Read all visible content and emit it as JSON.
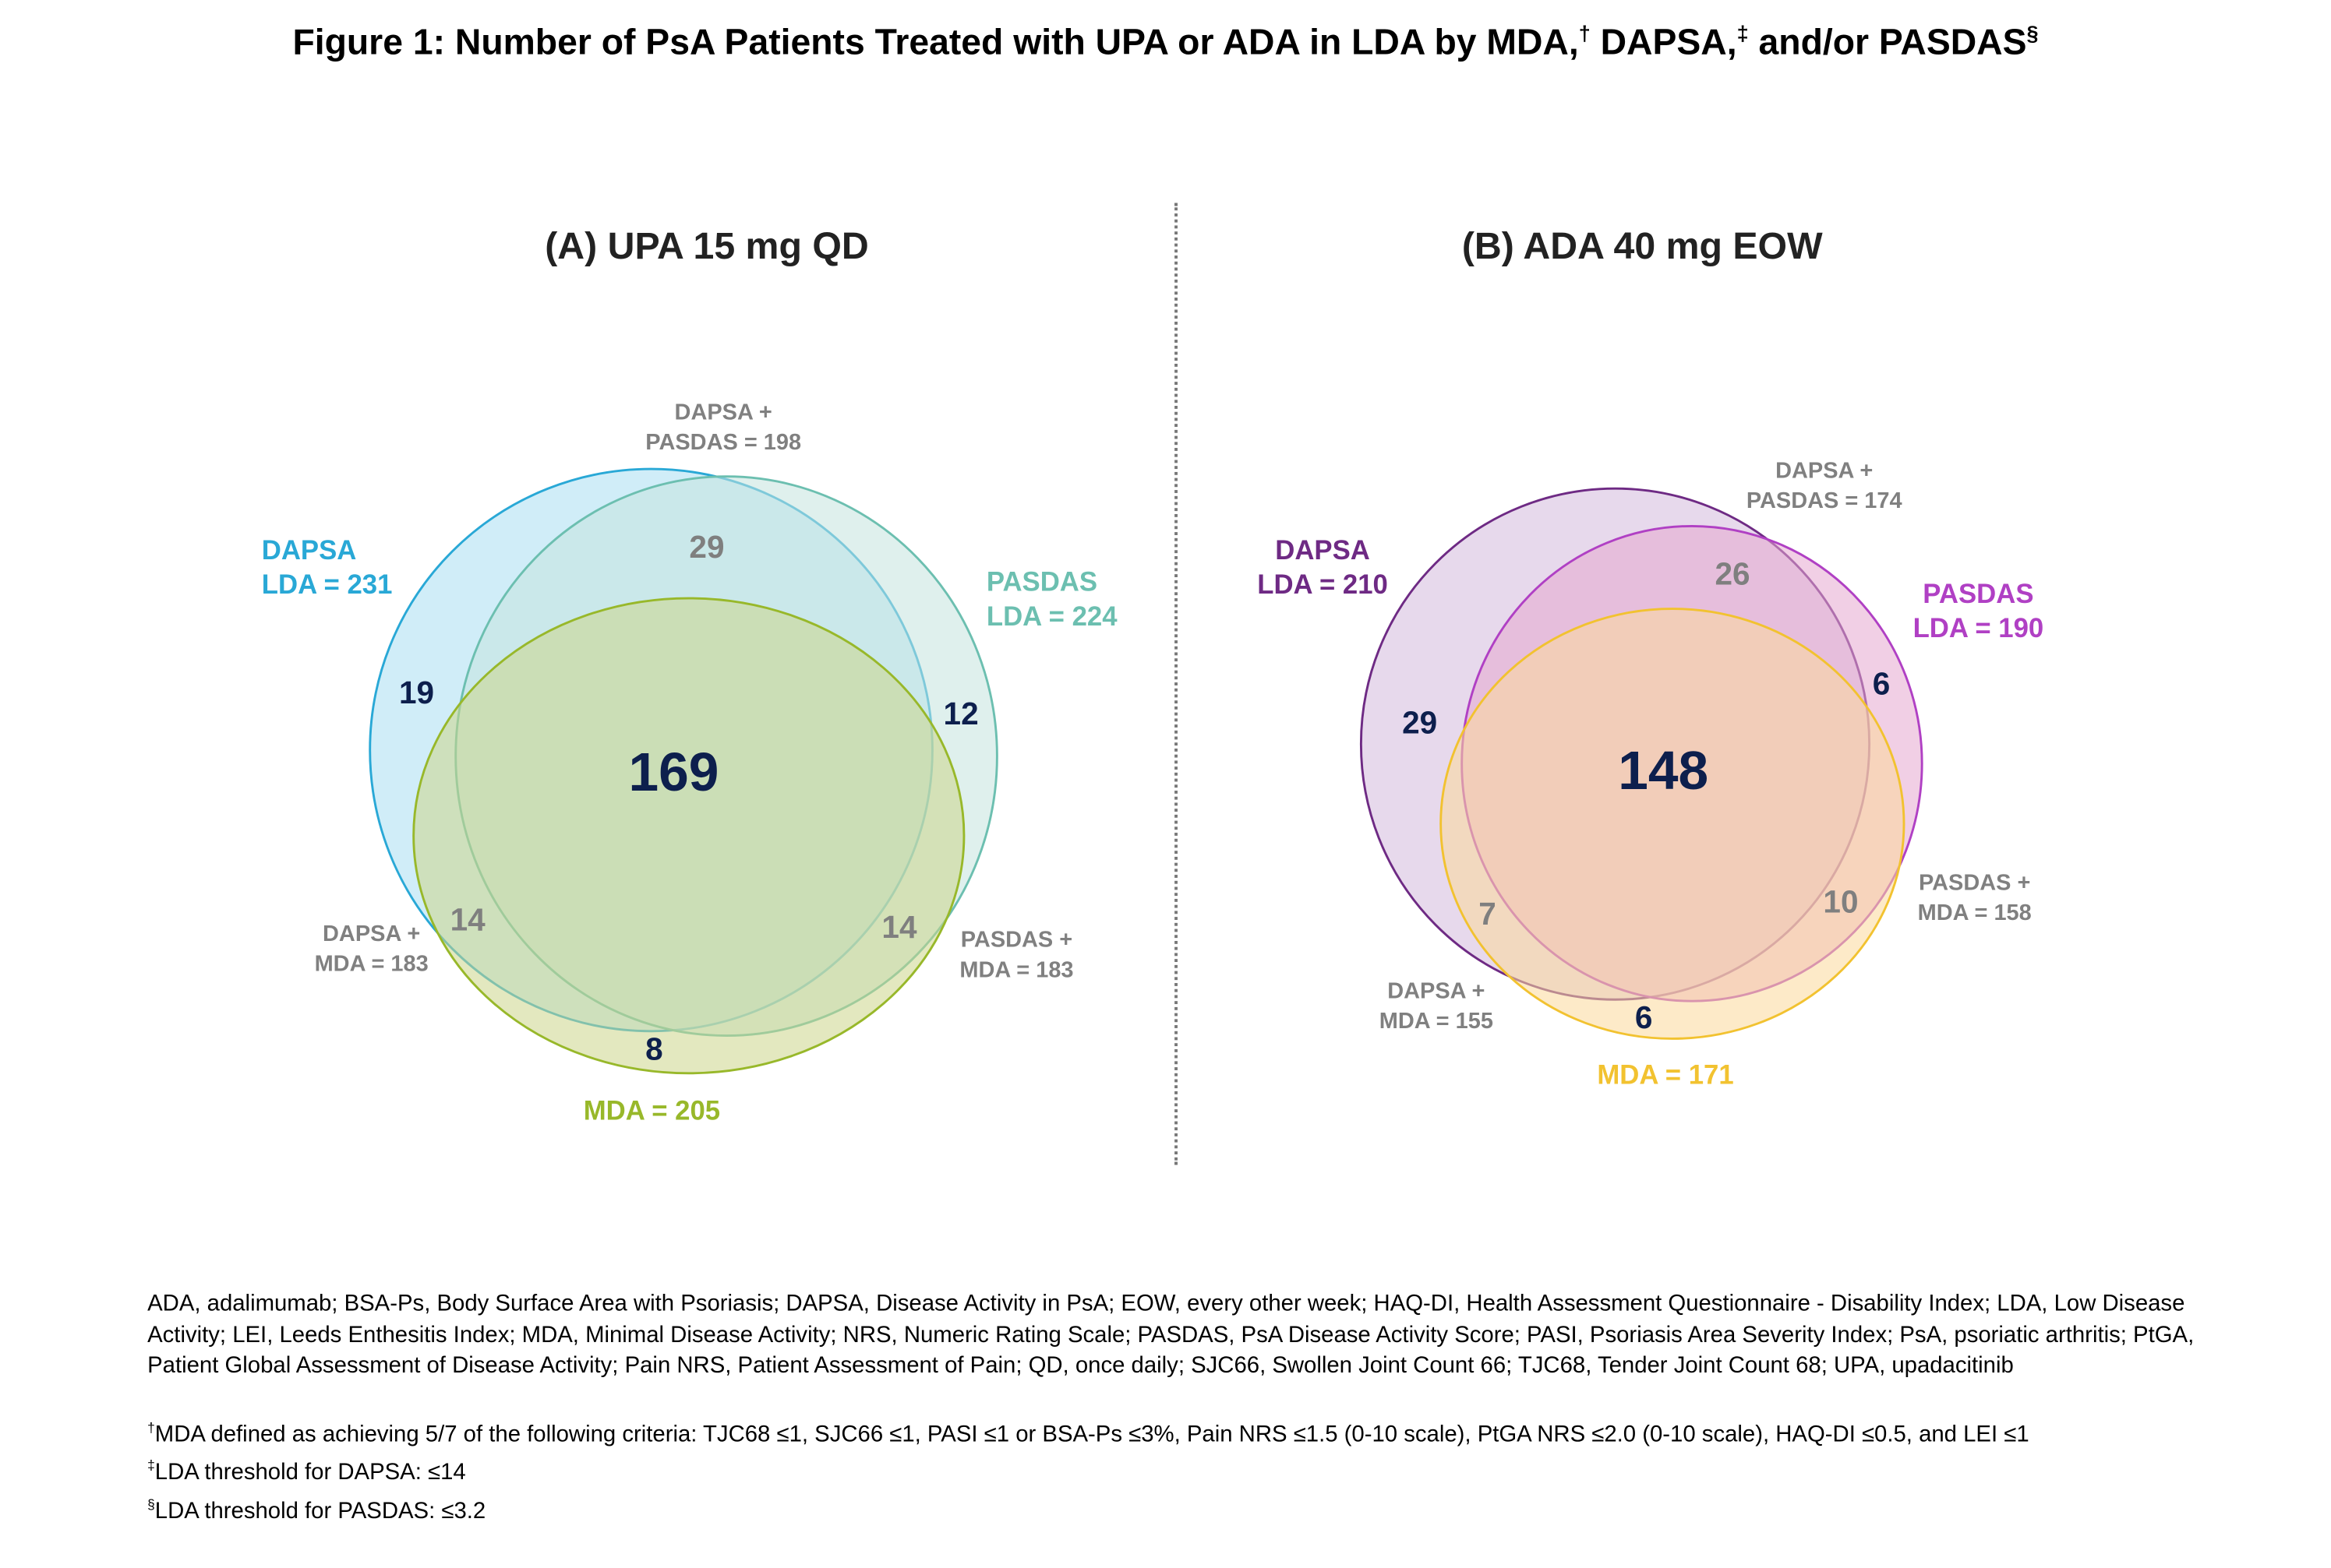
{
  "title": {
    "text": "Figure 1: Number of PsA Patients Treated with UPA or ADA in LDA by MDA,",
    "sup1": "†",
    "mid1": " DAPSA,",
    "sup2": "‡",
    "mid2": " and/or PASDAS",
    "sup3": "§"
  },
  "panels": [
    {
      "title": "(A) UPA 15 mg QD",
      "sets": {
        "dapsa": {
          "line1": "DAPSA",
          "line2": "LDA = 231",
          "color": "#29a8d6",
          "fill": "#a9dff2"
        },
        "pasdas": {
          "line1": "PASDAS",
          "line2": "LDA = 224",
          "color": "#6cbfb0",
          "fill": "#c4e3de"
        },
        "mda": {
          "label": "MDA = 205",
          "color": "#98b82a",
          "fill": "#ccd68a"
        }
      },
      "pairs": {
        "dapsa_pasdas": {
          "line1": "DAPSA +",
          "line2": "PASDAS = 198"
        },
        "dapsa_mda": {
          "line1": "DAPSA +",
          "line2": "MDA = 183"
        },
        "pasdas_mda": {
          "line1": "PASDAS +",
          "line2": "MDA = 183"
        }
      },
      "regions": {
        "all": "169",
        "dapsa_only": "19",
        "pasdas_only": "12",
        "mda_only": "8",
        "dapsa_pasdas": "29",
        "dapsa_mda": "14",
        "pasdas_mda": "14"
      }
    },
    {
      "title": "(B) ADA 40 mg EOW",
      "sets": {
        "dapsa": {
          "line1": "DAPSA",
          "line2": "LDA = 210",
          "color": "#6e2a84",
          "fill": "#d3b9dd"
        },
        "pasdas": {
          "line1": "PASDAS",
          "line2": "LDA = 190",
          "color": "#b040c4",
          "fill": "#e6a8cf"
        },
        "mda": {
          "label": "MDA = 171",
          "color": "#f2c230",
          "fill": "#fcd99a"
        }
      },
      "pairs": {
        "dapsa_pasdas": {
          "line1": "DAPSA +",
          "line2": "PASDAS = 174"
        },
        "dapsa_mda": {
          "line1": "DAPSA +",
          "line2": "MDA = 155"
        },
        "pasdas_mda": {
          "line1": "PASDAS +",
          "line2": "MDA = 158"
        }
      },
      "regions": {
        "all": "148",
        "dapsa_only": "29",
        "pasdas_only": "6",
        "mda_only": "6",
        "dapsa_pasdas": "26",
        "dapsa_mda": "7",
        "pasdas_mda": "10"
      }
    }
  ],
  "footnotes": {
    "abbreviations": "ADA, adalimumab; BSA-Ps, Body Surface Area with Psoriasis; DAPSA, Disease Activity in PsA; EOW, every other week; HAQ-DI, Health Assessment Questionnaire - Disability Index; LDA, Low Disease Activity; LEI, Leeds Enthesitis Index; MDA, Minimal Disease Activity; NRS, Numeric Rating Scale; PASDAS, PsA Disease Activity Score; PASI, Psoriasis Area Severity Index; PsA, psoriatic arthritis; PtGA, Patient Global Assessment of Disease Activity; Pain NRS, Patient Assessment of Pain; QD, once daily; SJC66, Swollen Joint Count 66; TJC68, Tender Joint Count 68; UPA, upadacitinib",
    "mda_mark": "†",
    "mda": "MDA defined as achieving 5/7 of the following criteria: TJC68 ≤1, SJC66 ≤1, PASI ≤1 or BSA-Ps ≤3%, Pain NRS ≤1.5 (0-10 scale), PtGA NRS ≤2.0 (0-10 scale), HAQ-DI ≤0.5, and LEI ≤1",
    "dapsa_mark": "‡",
    "dapsa": "LDA threshold for DAPSA: ≤14",
    "pasdas_mark": "§",
    "pasdas": "LDA threshold for PASDAS: ≤3.2"
  }
}
